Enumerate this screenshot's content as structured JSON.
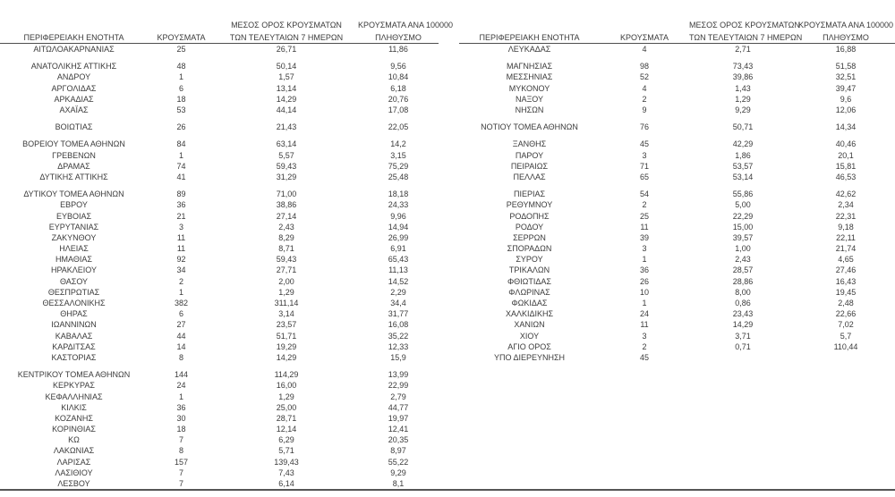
{
  "document": {
    "type": "regional-covid-cases-table",
    "text_color": "#3b3b3b",
    "rule_color": "#4f4f4f"
  },
  "headers": {
    "region": "ΠΕΡΙΦΕΡΕΙΑΚΗ ΕΝΟΤΗΤΑ",
    "cases": "ΚΡΟΥΣΜΑΤΑ",
    "avg7_line1": "ΜΕΣΟΣ ΟΡΟΣ ΚΡΟΥΣΜΑΤΩΝ",
    "avg7_line2": "ΤΩΝ ΤΕΛΕΥΤΑΙΩΝ 7 ΗΜΕΡΩΝ",
    "per100k_line1": "ΚΡΟΥΣΜΑΤΑ ΑΝΑ 100000",
    "per100k_line2": "ΠΛΗΘΥΣΜΟ"
  },
  "rows": [
    {
      "left": {
        "region": "ΑΙΤΩΛΟΑΚΑΡΝΑΝΙΑΣ",
        "cases": "25",
        "avg7": "26,71",
        "per100k": "11,86"
      },
      "right": {
        "region": "ΛΕΥΚΑΔΑΣ",
        "cases": "4",
        "avg7": "2,71",
        "per100k": "16,88"
      }
    },
    {
      "spacer": true
    },
    {
      "left": {
        "region": "ΑΝΑΤΟΛΙΚΗΣ ΑΤΤΙΚΗΣ",
        "cases": "48",
        "avg7": "50,14",
        "per100k": "9,56"
      },
      "right": {
        "region": "ΜΑΓΝΗΣΙΑΣ",
        "cases": "98",
        "avg7": "73,43",
        "per100k": "51,58"
      }
    },
    {
      "left": {
        "region": "ΑΝΔΡΟΥ",
        "cases": "1",
        "avg7": "1,57",
        "per100k": "10,84"
      },
      "right": {
        "region": "ΜΕΣΣΗΝΙΑΣ",
        "cases": "52",
        "avg7": "39,86",
        "per100k": "32,51"
      }
    },
    {
      "left": {
        "region": "ΑΡΓΟΛΙΔΑΣ",
        "cases": "6",
        "avg7": "13,14",
        "per100k": "6,18"
      },
      "right": {
        "region": "ΜΥΚΟΝΟΥ",
        "cases": "4",
        "avg7": "1,43",
        "per100k": "39,47"
      }
    },
    {
      "left": {
        "region": "ΑΡΚΑΔΙΑΣ",
        "cases": "18",
        "avg7": "14,29",
        "per100k": "20,76"
      },
      "right": {
        "region": "ΝΑΞΟΥ",
        "cases": "2",
        "avg7": "1,29",
        "per100k": "9,6"
      }
    },
    {
      "left": {
        "region": "ΑΧΑΪΑΣ",
        "cases": "53",
        "avg7": "44,14",
        "per100k": "17,08"
      },
      "right": {
        "region": "ΝΗΣΩΝ",
        "cases": "9",
        "avg7": "9,29",
        "per100k": "12,06"
      }
    },
    {
      "spacer": true
    },
    {
      "left": {
        "region": "ΒΟΙΩΤΙΑΣ",
        "cases": "26",
        "avg7": "21,43",
        "per100k": "22,05"
      },
      "right": {
        "region": "ΝΟΤΙΟΥ ΤΟΜΕΑ ΑΘΗΝΩΝ",
        "cases": "76",
        "avg7": "50,71",
        "per100k": "14,34"
      }
    },
    {
      "spacer": true
    },
    {
      "left": {
        "region": "ΒΟΡΕΙΟΥ ΤΟΜΕΑ ΑΘΗΝΩΝ",
        "cases": "84",
        "avg7": "63,14",
        "per100k": "14,2"
      },
      "right": {
        "region": "ΞΑΝΘΗΣ",
        "cases": "45",
        "avg7": "42,29",
        "per100k": "40,46"
      }
    },
    {
      "left": {
        "region": "ΓΡΕΒΕΝΩΝ",
        "cases": "1",
        "avg7": "5,57",
        "per100k": "3,15"
      },
      "right": {
        "region": "ΠΑΡΟΥ",
        "cases": "3",
        "avg7": "1,86",
        "per100k": "20,1"
      }
    },
    {
      "left": {
        "region": "ΔΡΑΜΑΣ",
        "cases": "74",
        "avg7": "59,43",
        "per100k": "75,29"
      },
      "right": {
        "region": "ΠΕΙΡΑΙΩΣ",
        "cases": "71",
        "avg7": "53,57",
        "per100k": "15,81"
      }
    },
    {
      "left": {
        "region": "ΔΥΤΙΚΗΣ ΑΤΤΙΚΗΣ",
        "cases": "41",
        "avg7": "31,29",
        "per100k": "25,48"
      },
      "right": {
        "region": "ΠΕΛΛΑΣ",
        "cases": "65",
        "avg7": "53,14",
        "per100k": "46,53"
      }
    },
    {
      "spacer": true
    },
    {
      "left": {
        "region": "ΔΥΤΙΚΟΥ ΤΟΜΕΑ ΑΘΗΝΩΝ",
        "cases": "89",
        "avg7": "71,00",
        "per100k": "18,18"
      },
      "right": {
        "region": "ΠΙΕΡΙΑΣ",
        "cases": "54",
        "avg7": "55,86",
        "per100k": "42,62"
      }
    },
    {
      "left": {
        "region": "ΕΒΡΟΥ",
        "cases": "36",
        "avg7": "38,86",
        "per100k": "24,33"
      },
      "right": {
        "region": "ΡΕΘΥΜΝΟΥ",
        "cases": "2",
        "avg7": "5,00",
        "per100k": "2,34"
      }
    },
    {
      "left": {
        "region": "ΕΥΒΟΙΑΣ",
        "cases": "21",
        "avg7": "27,14",
        "per100k": "9,96"
      },
      "right": {
        "region": "ΡΟΔΟΠΗΣ",
        "cases": "25",
        "avg7": "22,29",
        "per100k": "22,31"
      }
    },
    {
      "left": {
        "region": "ΕΥΡΥΤΑΝΙΑΣ",
        "cases": "3",
        "avg7": "2,43",
        "per100k": "14,94"
      },
      "right": {
        "region": "ΡΟΔΟΥ",
        "cases": "11",
        "avg7": "15,00",
        "per100k": "9,18"
      }
    },
    {
      "left": {
        "region": "ΖΑΚΥΝΘΟΥ",
        "cases": "11",
        "avg7": "8,29",
        "per100k": "26,99"
      },
      "right": {
        "region": "ΣΕΡΡΩΝ",
        "cases": "39",
        "avg7": "39,57",
        "per100k": "22,11"
      }
    },
    {
      "left": {
        "region": "ΗΛΕΙΑΣ",
        "cases": "11",
        "avg7": "8,71",
        "per100k": "6,91"
      },
      "right": {
        "region": "ΣΠΟΡΑΔΩΝ",
        "cases": "3",
        "avg7": "1,00",
        "per100k": "21,74"
      }
    },
    {
      "left": {
        "region": "ΗΜΑΘΙΑΣ",
        "cases": "92",
        "avg7": "59,43",
        "per100k": "65,43"
      },
      "right": {
        "region": "ΣΥΡΟΥ",
        "cases": "1",
        "avg7": "2,43",
        "per100k": "4,65"
      }
    },
    {
      "left": {
        "region": "ΗΡΑΚΛΕΙΟΥ",
        "cases": "34",
        "avg7": "27,71",
        "per100k": "11,13"
      },
      "right": {
        "region": "ΤΡΙΚΑΛΩΝ",
        "cases": "36",
        "avg7": "28,57",
        "per100k": "27,46"
      }
    },
    {
      "left": {
        "region": "ΘΑΣΟΥ",
        "cases": "2",
        "avg7": "2,00",
        "per100k": "14,52"
      },
      "right": {
        "region": "ΦΘΙΩΤΙΔΑΣ",
        "cases": "26",
        "avg7": "28,86",
        "per100k": "16,43"
      }
    },
    {
      "left": {
        "region": "ΘΕΣΠΡΩΤΙΑΣ",
        "cases": "1",
        "avg7": "1,29",
        "per100k": "2,29"
      },
      "right": {
        "region": "ΦΛΩΡΙΝΑΣ",
        "cases": "10",
        "avg7": "8,00",
        "per100k": "19,45"
      }
    },
    {
      "left": {
        "region": "ΘΕΣΣΑΛΟΝΙΚΗΣ",
        "cases": "382",
        "avg7": "311,14",
        "per100k": "34,4"
      },
      "right": {
        "region": "ΦΩΚΙΔΑΣ",
        "cases": "1",
        "avg7": "0,86",
        "per100k": "2,48"
      }
    },
    {
      "left": {
        "region": "ΘΗΡΑΣ",
        "cases": "6",
        "avg7": "3,14",
        "per100k": "31,77"
      },
      "right": {
        "region": "ΧΑΛΚΙΔΙΚΗΣ",
        "cases": "24",
        "avg7": "23,43",
        "per100k": "22,66"
      }
    },
    {
      "left": {
        "region": "ΙΩΑΝΝΙΝΩΝ",
        "cases": "27",
        "avg7": "23,57",
        "per100k": "16,08"
      },
      "right": {
        "region": "ΧΑΝΙΩΝ",
        "cases": "11",
        "avg7": "14,29",
        "per100k": "7,02"
      }
    },
    {
      "left": {
        "region": "ΚΑΒΑΛΑΣ",
        "cases": "44",
        "avg7": "51,71",
        "per100k": "35,22"
      },
      "right": {
        "region": "ΧΙΟΥ",
        "cases": "3",
        "avg7": "3,71",
        "per100k": "5,7"
      }
    },
    {
      "left": {
        "region": "ΚΑΡΔΙΤΣΑΣ",
        "cases": "14",
        "avg7": "19,29",
        "per100k": "12,33"
      },
      "right": {
        "region": "ΑΓΙΟ ΟΡΟΣ",
        "cases": "2",
        "avg7": "0,71",
        "per100k": "110,44"
      }
    },
    {
      "left": {
        "region": "ΚΑΣΤΟΡΙΑΣ",
        "cases": "8",
        "avg7": "14,29",
        "per100k": "15,9"
      },
      "right": {
        "region": "ΥΠΟ ΔΙΕΡΕΥΝΗΣΗ",
        "cases": "45",
        "avg7": "",
        "per100k": ""
      }
    },
    {
      "spacer": true
    },
    {
      "left": {
        "region": "ΚΕΝΤΡΙΚΟΥ ΤΟΜΕΑ ΑΘΗΝΩΝ",
        "cases": "144",
        "avg7": "114,29",
        "per100k": "13,99"
      },
      "right": null
    },
    {
      "left": {
        "region": "ΚΕΡΚΥΡΑΣ",
        "cases": "24",
        "avg7": "16,00",
        "per100k": "22,99"
      },
      "right": null
    },
    {
      "left": {
        "region": "ΚΕΦΑΛΛΗΝΙΑΣ",
        "cases": "1",
        "avg7": "1,29",
        "per100k": "2,79"
      },
      "right": null
    },
    {
      "left": {
        "region": "ΚΙΛΚΙΣ",
        "cases": "36",
        "avg7": "25,00",
        "per100k": "44,77"
      },
      "right": null
    },
    {
      "left": {
        "region": "ΚΟΖΑΝΗΣ",
        "cases": "30",
        "avg7": "28,71",
        "per100k": "19,97"
      },
      "right": null
    },
    {
      "left": {
        "region": "ΚΟΡΙΝΘΙΑΣ",
        "cases": "18",
        "avg7": "12,14",
        "per100k": "12,41"
      },
      "right": null
    },
    {
      "left": {
        "region": "ΚΩ",
        "cases": "7",
        "avg7": "6,29",
        "per100k": "20,35"
      },
      "right": null
    },
    {
      "left": {
        "region": "ΛΑΚΩΝΙΑΣ",
        "cases": "8",
        "avg7": "5,71",
        "per100k": "8,97"
      },
      "right": null
    },
    {
      "left": {
        "region": "ΛΑΡΙΣΑΣ",
        "cases": "157",
        "avg7": "139,43",
        "per100k": "55,22"
      },
      "right": null
    },
    {
      "left": {
        "region": "ΛΑΣΙΘΙΟΥ",
        "cases": "7",
        "avg7": "7,43",
        "per100k": "9,29"
      },
      "right": null
    },
    {
      "left": {
        "region": "ΛΕΣΒΟΥ",
        "cases": "7",
        "avg7": "6,14",
        "per100k": "8,1"
      },
      "right": null
    }
  ]
}
